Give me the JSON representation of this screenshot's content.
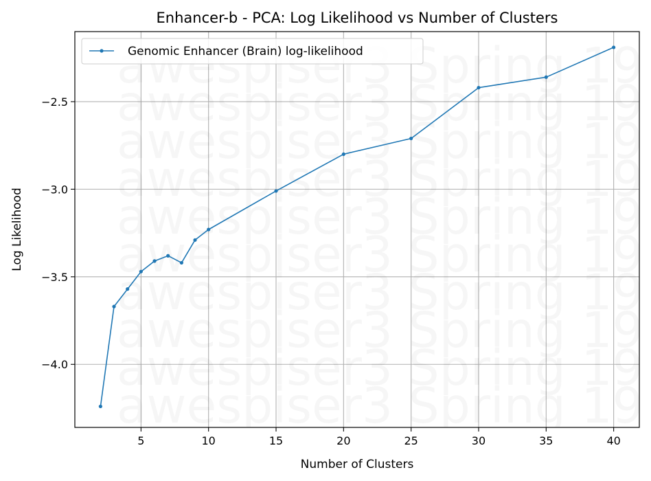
{
  "chart_data": {
    "type": "line",
    "title": "Enhancer-b - PCA: Log Likelihood vs Number of Clusters",
    "xlabel": "Number of Clusters",
    "ylabel": "Log Likelihood",
    "xlim": [
      0.1,
      41.9
    ],
    "ylim": [
      -4.36,
      -2.1
    ],
    "xticks": [
      5,
      10,
      15,
      20,
      25,
      30,
      35,
      40
    ],
    "xtick_labels": [
      "5",
      "10",
      "15",
      "20",
      "25",
      "30",
      "35",
      "40"
    ],
    "yticks": [
      -2.5,
      -3.0,
      -3.5,
      -4.0
    ],
    "ytick_labels": [
      "−2.5",
      "−3.0",
      "−3.5",
      "−4.0"
    ],
    "grid": true,
    "legend_position": "top-left",
    "series": [
      {
        "name": "Genomic Enhancer (Brain) log-likelihood",
        "color": "#1f77b4",
        "x": [
          2,
          3,
          4,
          5,
          6,
          7,
          8,
          9,
          10,
          15,
          20,
          25,
          30,
          35,
          40
        ],
        "y": [
          -4.24,
          -3.67,
          -3.57,
          -3.47,
          -3.41,
          -3.38,
          -3.42,
          -3.29,
          -3.23,
          -3.01,
          -2.8,
          -2.71,
          -2.42,
          -2.36,
          -2.19
        ]
      }
    ]
  },
  "watermark": {
    "text": "awespiser3 Spring 19"
  }
}
